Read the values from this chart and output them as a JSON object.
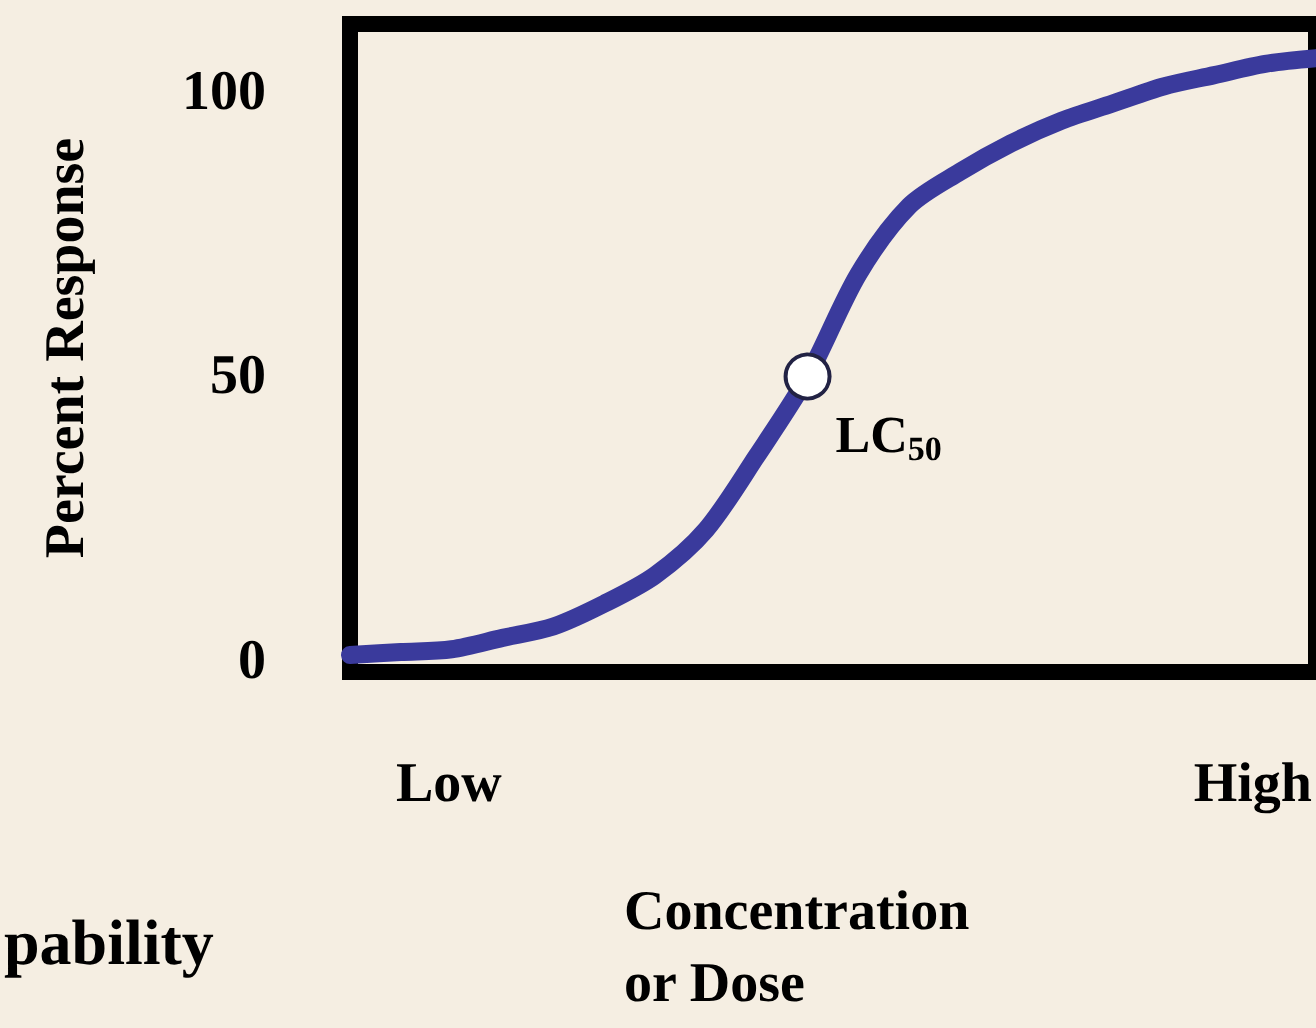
{
  "chart_data": {
    "type": "line",
    "xlabel": "Concentration\nor Dose",
    "ylabel": "Percent Response",
    "categories": [
      null,
      null,
      null,
      null,
      null,
      null,
      null,
      null,
      null,
      null,
      null,
      null,
      null,
      null,
      null,
      null,
      null,
      null,
      null,
      null
    ],
    "series": [
      {
        "color": "#3a3a9c",
        "values": [
          1,
          1.5,
          2,
          4,
          6,
          10,
          15,
          23,
          36,
          50,
          68,
          80,
          86,
          91,
          95,
          98,
          101,
          103,
          105,
          106
        ]
      },
      {
        "type": "scatter",
        "color": "#ffffff",
        "values": [
          null,
          null,
          null,
          null,
          null,
          null,
          null,
          null,
          null,
          50,
          null,
          null,
          null,
          null,
          null,
          null,
          null,
          null,
          null,
          null
        ]
      }
    ],
    "ylim": [
      -2,
      112
    ],
    "yticks": [
      0,
      50,
      100
    ],
    "grid": false,
    "tick_labels": "y",
    "annotations": [
      "Low",
      "High",
      "pability",
      "LC$_{50}$"
    ]
  }
}
